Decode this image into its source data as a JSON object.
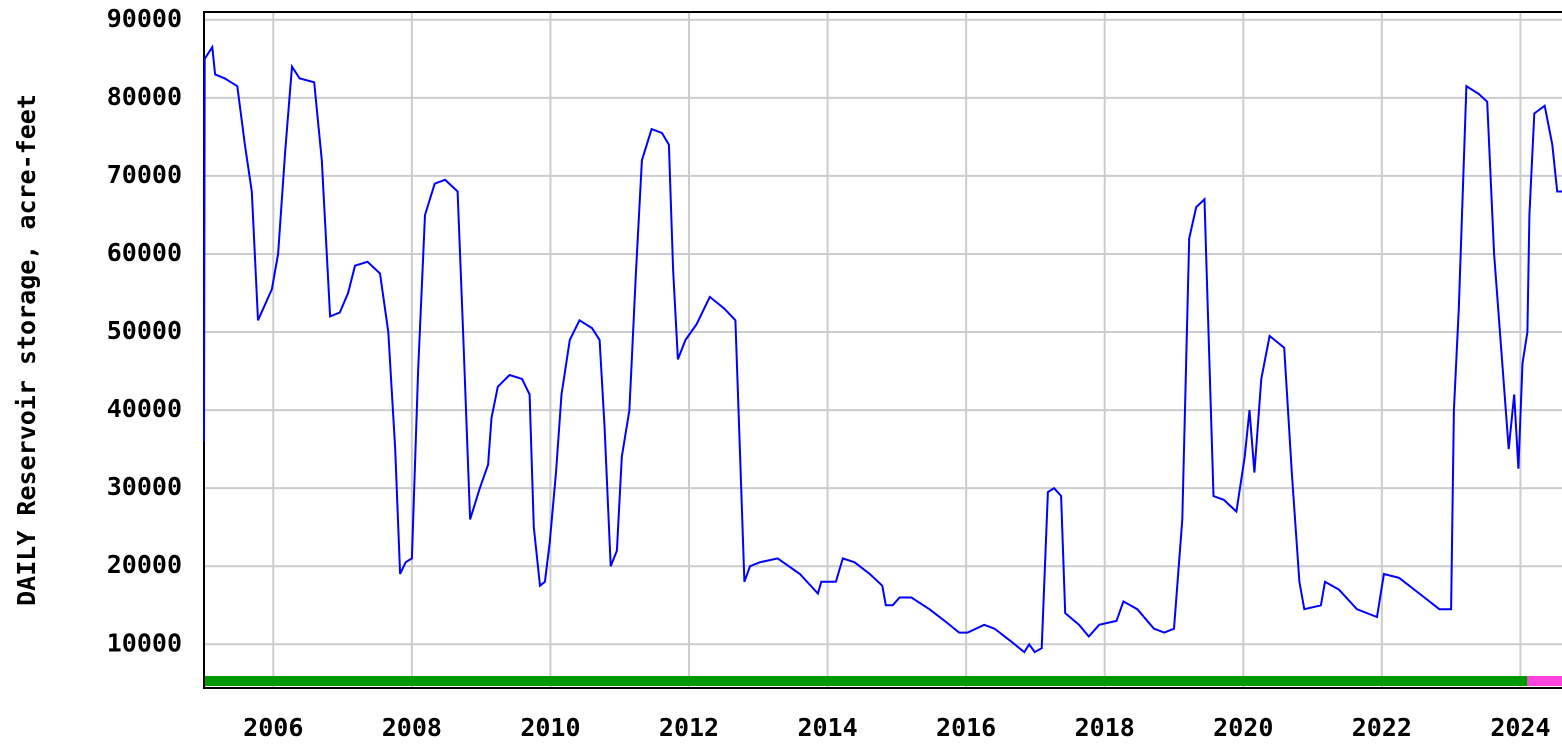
{
  "chart_data": {
    "type": "line",
    "y_label": "DAILY Reservoir storage, acre-feet",
    "xlim": [
      2005.0,
      2024.6
    ],
    "xticks": [
      2006,
      2008,
      2010,
      2012,
      2014,
      2016,
      2018,
      2020,
      2022,
      2024
    ],
    "ylim": [
      4400,
      91000
    ],
    "yticks": [
      10000,
      20000,
      30000,
      40000,
      50000,
      60000,
      70000,
      80000,
      90000
    ],
    "grid": true,
    "status_bars": [
      {
        "from": 2005.0,
        "to": 2024.1,
        "color": "#009900"
      },
      {
        "from": 2024.1,
        "to": 2024.6,
        "color": "#ff44dd"
      }
    ],
    "x": [
      2005.0,
      2005.01,
      2005.12,
      2005.16,
      2005.3,
      2005.48,
      2005.59,
      2005.69,
      2005.78,
      2005.88,
      2005.98,
      2006.07,
      2006.17,
      2006.27,
      2006.38,
      2006.59,
      2006.7,
      2006.82,
      2006.96,
      2007.08,
      2007.18,
      2007.36,
      2007.54,
      2007.66,
      2007.76,
      2007.83,
      2007.91,
      2008.0,
      2008.09,
      2008.19,
      2008.33,
      2008.48,
      2008.66,
      2008.74,
      2008.84,
      2008.98,
      2009.1,
      2009.15,
      2009.24,
      2009.41,
      2009.59,
      2009.7,
      2009.76,
      2009.85,
      2009.92,
      2009.99,
      2010.08,
      2010.16,
      2010.28,
      2010.42,
      2010.6,
      2010.71,
      2010.78,
      2010.87,
      2010.96,
      2011.03,
      2011.14,
      2011.23,
      2011.32,
      2011.46,
      2011.61,
      2011.71,
      2011.77,
      2011.84,
      2011.95,
      2012.11,
      2012.3,
      2012.51,
      2012.67,
      2012.73,
      2012.8,
      2012.88,
      2013.02,
      2013.28,
      2013.6,
      2013.86,
      2013.91,
      2014.12,
      2014.22,
      2014.39,
      2014.61,
      2014.79,
      2014.84,
      2014.94,
      2015.04,
      2015.21,
      2015.47,
      2015.69,
      2015.9,
      2016.02,
      2016.26,
      2016.41,
      2016.63,
      2016.84,
      2016.91,
      2016.99,
      2017.09,
      2017.18,
      2017.27,
      2017.37,
      2017.43,
      2017.63,
      2017.77,
      2017.92,
      2018.17,
      2018.27,
      2018.47,
      2018.71,
      2018.86,
      2019.0,
      2019.12,
      2019.15,
      2019.22,
      2019.32,
      2019.44,
      2019.47,
      2019.57,
      2019.72,
      2019.9,
      2020.02,
      2020.09,
      2020.16,
      2020.26,
      2020.38,
      2020.59,
      2020.7,
      2020.81,
      2020.88,
      2021.12,
      2021.18,
      2021.38,
      2021.64,
      2021.93,
      2022.03,
      2022.25,
      2022.54,
      2022.83,
      2023.0,
      2023.04,
      2023.11,
      2023.22,
      2023.4,
      2023.52,
      2023.62,
      2023.73,
      2023.83,
      2023.91,
      2023.97,
      2024.03,
      2024.1,
      2024.13,
      2024.2,
      2024.35,
      2024.46,
      2024.53,
      2024.6
    ],
    "series": [
      {
        "name": "Reservoir storage",
        "color": "#0000ff",
        "values": [
          36000,
          85000,
          86500,
          83000,
          82500,
          81500,
          74000,
          68000,
          51500,
          53500,
          55500,
          60000,
          73000,
          84000,
          82500,
          82000,
          72000,
          52000,
          52500,
          55000,
          58500,
          59000,
          57500,
          50000,
          35000,
          19000,
          20500,
          21000,
          45000,
          65000,
          69000,
          69500,
          68000,
          50000,
          26000,
          30000,
          33000,
          39000,
          43000,
          44500,
          44000,
          42000,
          25000,
          17500,
          18000,
          23000,
          32000,
          42000,
          49000,
          51500,
          50500,
          49000,
          38000,
          20000,
          22000,
          34000,
          40000,
          57000,
          72000,
          76000,
          75500,
          74000,
          58000,
          46500,
          49000,
          51000,
          54500,
          53000,
          51500,
          36000,
          18000,
          20000,
          20500,
          21000,
          19000,
          16500,
          18000,
          18000,
          21000,
          20500,
          19000,
          17500,
          15000,
          15000,
          16000,
          16000,
          14500,
          13000,
          11500,
          11500,
          12500,
          12000,
          10500,
          9000,
          10000,
          9000,
          9500,
          29500,
          30000,
          29000,
          14000,
          12500,
          11000,
          12500,
          13000,
          15500,
          14500,
          12000,
          11500,
          12000,
          26000,
          37000,
          62000,
          66000,
          67000,
          58000,
          29000,
          28500,
          27000,
          34000,
          40000,
          32000,
          44000,
          49500,
          48000,
          32000,
          18000,
          14500,
          15000,
          18000,
          17000,
          14500,
          13500,
          19000,
          18500,
          16500,
          14500,
          14500,
          40000,
          53000,
          81500,
          80500,
          79500,
          60000,
          47000,
          35000,
          42000,
          32500,
          46000,
          50000,
          65000,
          78000,
          79000,
          74000,
          68000,
          68000
        ]
      }
    ]
  }
}
